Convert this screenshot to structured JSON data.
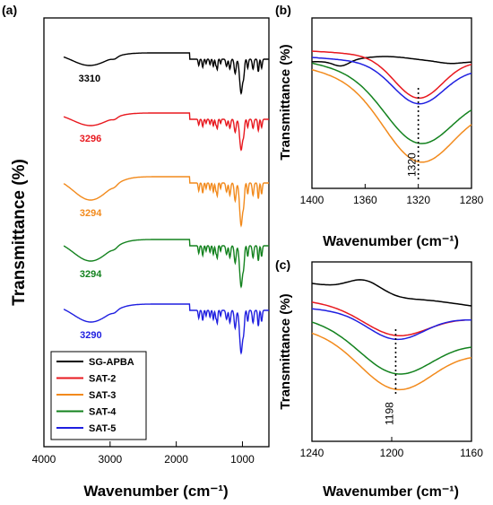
{
  "chart_data": [
    {
      "panel": "(a)",
      "type": "line",
      "xlabel": "Wavenumber (cm⁻¹)",
      "ylabel": "Transmittance (%)",
      "xlim": [
        4000,
        600
      ],
      "xticks": [
        "4000",
        "3000",
        "2000",
        "1000"
      ],
      "legend": {
        "placement": "bottom-left",
        "entries": [
          "SG-APBA",
          "SAT-2",
          "SAT-3",
          "SAT-4",
          "SAT-5"
        ]
      },
      "series": [
        {
          "name": "SG-APBA",
          "color": "#000000",
          "annotation": "3310",
          "peak_x": 3310
        },
        {
          "name": "SAT-2",
          "color": "#e8191f",
          "annotation": "3296",
          "peak_x": 3296
        },
        {
          "name": "SAT-3",
          "color": "#f28a1c",
          "annotation": "3294",
          "peak_x": 3294
        },
        {
          "name": "SAT-4",
          "color": "#13821e",
          "annotation": "3294",
          "peak_x": 3294
        },
        {
          "name": "SAT-5",
          "color": "#1f1fe0",
          "annotation": "3290",
          "peak_x": 3290
        }
      ]
    },
    {
      "panel": "(b)",
      "type": "line",
      "xlabel": "Wavenumber (cm⁻¹)",
      "ylabel": "Transmittance (%)",
      "xlim": [
        1400,
        1280
      ],
      "xticks": [
        "1400",
        "1360",
        "1320",
        "1280"
      ],
      "marker": {
        "x": 1320,
        "label": "1320"
      },
      "series": [
        {
          "name": "SG-APBA",
          "color": "#000000"
        },
        {
          "name": "SAT-2",
          "color": "#e8191f"
        },
        {
          "name": "SAT-3",
          "color": "#f28a1c"
        },
        {
          "name": "SAT-4",
          "color": "#13821e"
        },
        {
          "name": "SAT-5",
          "color": "#1f1fe0"
        }
      ]
    },
    {
      "panel": "(c)",
      "type": "line",
      "xlabel": "Wavenumber (cm⁻¹)",
      "ylabel": "Transmittance (%)",
      "xlim": [
        1240,
        1160
      ],
      "xticks": [
        "1240",
        "1200",
        "1160"
      ],
      "marker": {
        "x": 1198,
        "label": "1198"
      },
      "series": [
        {
          "name": "SG-APBA",
          "color": "#000000"
        },
        {
          "name": "SAT-2",
          "color": "#e8191f"
        },
        {
          "name": "SAT-3",
          "color": "#f28a1c"
        },
        {
          "name": "SAT-4",
          "color": "#13821e"
        },
        {
          "name": "SAT-5",
          "color": "#1f1fe0"
        }
      ]
    }
  ]
}
